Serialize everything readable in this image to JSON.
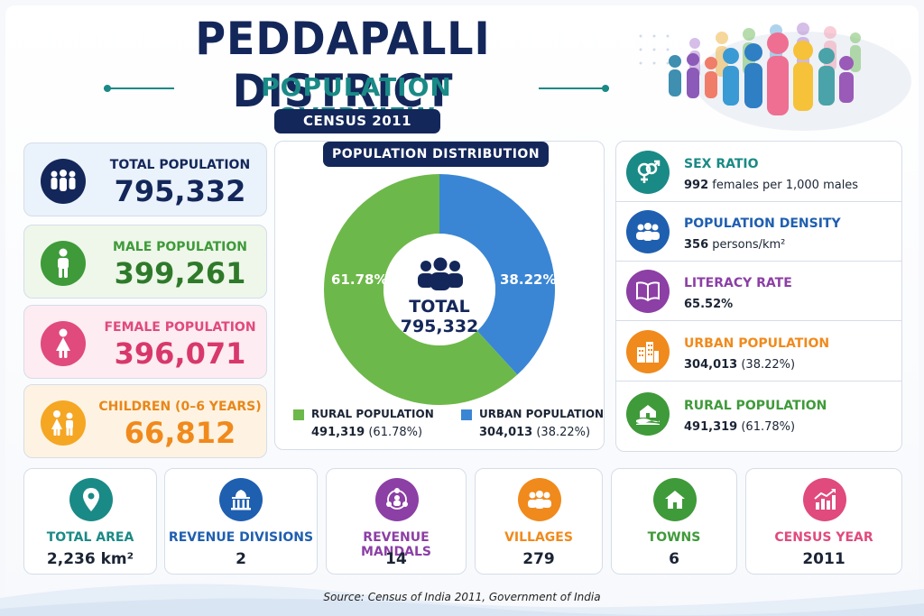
{
  "header": {
    "title": "PEDDAPALLI DISTRICT",
    "subtitle": "POPULATION OVERVIEW",
    "census_badge": "CENSUS 2011"
  },
  "colors": {
    "navy": "#14275a",
    "teal": "#1a8a86",
    "blue": "#1f4f9e",
    "green": "#3f9a3a",
    "pink": "#e04a7c",
    "orange": "#f08a1c",
    "purple": "#8c3fa5",
    "rural_green": "#6db84a",
    "urban_blue": "#3a86d4"
  },
  "left_stats": [
    {
      "label": "TOTAL POPULATION",
      "value": "795,332",
      "icon": "family-icon"
    },
    {
      "label": "MALE POPULATION",
      "value": "399,261",
      "icon": "male-icon"
    },
    {
      "label": "FEMALE POPULATION",
      "value": "396,071",
      "icon": "female-icon"
    },
    {
      "label": "CHILDREN (0–6 YEARS)",
      "value": "66,812",
      "icon": "children-icon"
    }
  ],
  "distribution": {
    "title": "POPULATION DISTRIBUTION",
    "center_label": "TOTAL",
    "center_value": "795,332",
    "rural_pct_label": "61.78%",
    "urban_pct_label": "38.22%",
    "legend": [
      {
        "name": "RURAL POPULATION",
        "count": "491,319",
        "pct": "(61.78%)"
      },
      {
        "name": "URBAN POPULATION",
        "count": "304,013",
        "pct": "(38.22%)"
      }
    ]
  },
  "chart_data": {
    "type": "pie",
    "title": "POPULATION DISTRIBUTION",
    "categories": [
      "RURAL POPULATION",
      "URBAN POPULATION"
    ],
    "values": [
      491319,
      304013
    ],
    "percentages": [
      61.78,
      38.22
    ],
    "colors": [
      "#6db84a",
      "#3a86d4"
    ]
  },
  "right_stats": [
    {
      "label": "SEX RATIO",
      "value_bold": "992",
      "value_rest": " females per 1,000 males",
      "icon": "gender-icon"
    },
    {
      "label": "POPULATION DENSITY",
      "value_bold": "356",
      "value_rest": " persons/km²",
      "icon": "people-group-icon"
    },
    {
      "label": "LITERACY RATE",
      "value_bold": "65.52%",
      "value_rest": "",
      "icon": "book-icon"
    },
    {
      "label": "URBAN POPULATION",
      "value_bold": "304,013",
      "value_rest": " (38.22%)",
      "icon": "buildings-icon"
    },
    {
      "label": "RURAL POPULATION",
      "value_bold": "491,319",
      "value_rest": " (61.78%)",
      "icon": "farm-icon"
    }
  ],
  "bottom_stats": [
    {
      "label": "TOTAL AREA",
      "value": "2,236 km²",
      "icon": "location-pin-icon"
    },
    {
      "label": "REVENUE DIVISIONS",
      "value": "2",
      "icon": "government-building-icon"
    },
    {
      "label": "REVENUE MANDALS",
      "value": "14",
      "icon": "network-people-icon"
    },
    {
      "label": "VILLAGES",
      "value": "279",
      "icon": "villagers-icon"
    },
    {
      "label": "TOWNS",
      "value": "6",
      "icon": "house-icon"
    },
    {
      "label": "CENSUS YEAR",
      "value": "2011",
      "icon": "growth-chart-icon"
    }
  ],
  "source": "Source: Census of India 2011, Government of India"
}
